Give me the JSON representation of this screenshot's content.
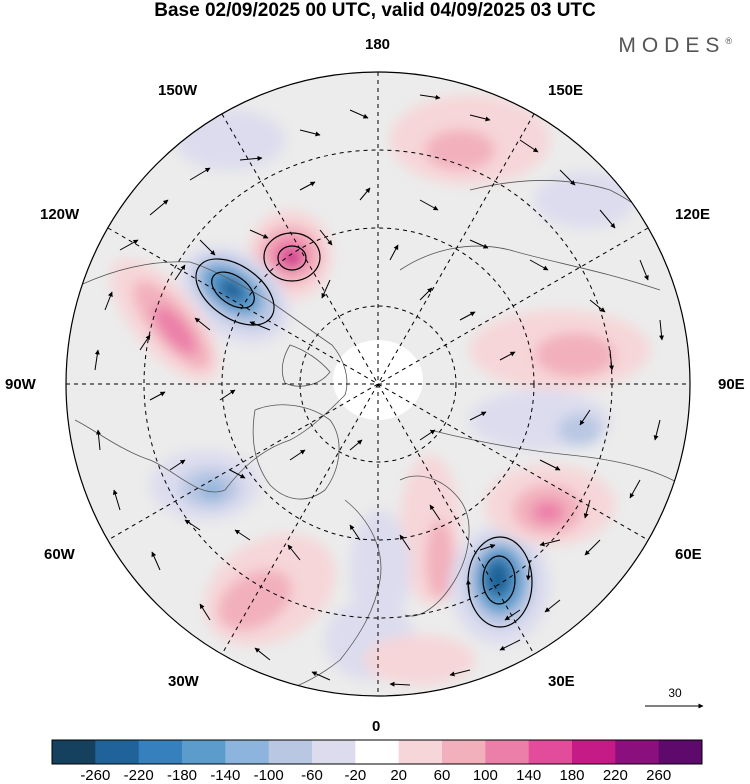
{
  "title": "Base 02/09/2025 00 UTC, valid 04/09/2025 03 UTC",
  "brand": "MODES",
  "brand_mark": "®",
  "map": {
    "projection": "north polar stereographic",
    "longitude_labels": {
      "top": "180",
      "upper_left": "150W",
      "upper_right": "150E",
      "mid_upper_left": "120W",
      "mid_upper_right": "120E",
      "left": "90W",
      "right": "90E",
      "mid_lower_left": "60W",
      "mid_lower_right": "60E",
      "lower_left": "30W",
      "lower_right": "30E",
      "bottom": "0"
    },
    "wind_reference_vector": "30",
    "anomaly_centers": [
      {
        "name": "positive center over Alaska / Chukotka",
        "sign": "positive",
        "value": 220
      },
      {
        "name": "negative center over western Canada",
        "sign": "negative",
        "value": -220
      },
      {
        "name": "positive ridge over western North America",
        "sign": "positive",
        "value": 140
      },
      {
        "name": "negative center over Scandinavia",
        "sign": "negative",
        "value": -220
      },
      {
        "name": "positive center over western Siberia",
        "sign": "positive",
        "value": 140
      }
    ]
  },
  "colorbar": {
    "tick_labels": [
      "-260",
      "-220",
      "-180",
      "-140",
      "-100",
      "-60",
      "-20",
      "20",
      "60",
      "100",
      "140",
      "180",
      "220",
      "260"
    ],
    "colors": [
      "#16415e",
      "#1f639a",
      "#3580bd",
      "#5c9ccd",
      "#8db4dc",
      "#b9c7e3",
      "#dcdcee",
      "#ffffff",
      "#f6d6d8",
      "#f2b0bc",
      "#ec7fa9",
      "#e34c9a",
      "#c41b86",
      "#8c0f7e",
      "#5d0a6c"
    ]
  }
}
